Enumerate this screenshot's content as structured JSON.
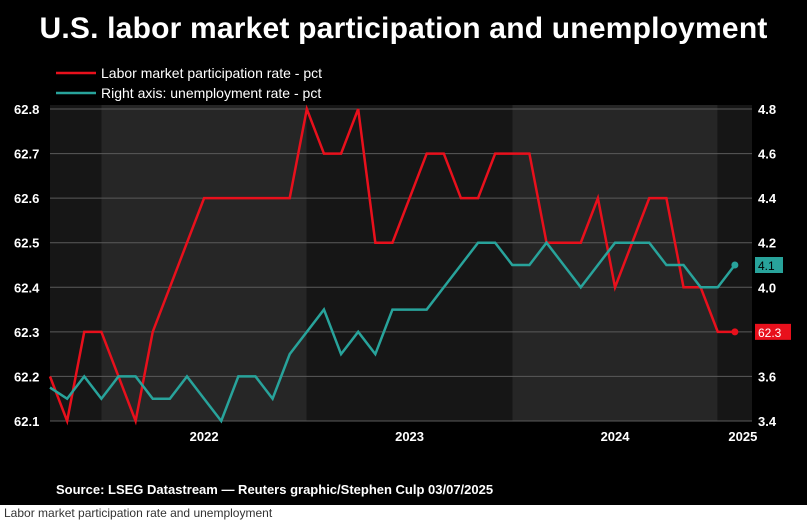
{
  "chart_data": {
    "type": "line",
    "title": "U.S. labor market participation and unemployment",
    "source": "Source: LSEG Datastream — Reuters graphic/Stephen Culp 03/07/2025",
    "caption": "Labor market participation rate and unemployment",
    "x_ticks": [
      "2022",
      "2023",
      "2024",
      "2025"
    ],
    "x_range": [
      "2021-10",
      "2025-03"
    ],
    "left_axis": {
      "ticks": [
        "62.1",
        "62.2",
        "62.3",
        "62.4",
        "62.5",
        "62.6",
        "62.7",
        "62.8"
      ],
      "ylim": [
        62.1,
        62.8
      ]
    },
    "right_axis": {
      "ticks": [
        "3.4",
        "3.6",
        "3.8",
        "4.0",
        "4.2",
        "4.4",
        "4.6",
        "4.8"
      ],
      "ylim": [
        3.4,
        4.8
      ]
    },
    "grid": true,
    "legend_position": "top-left",
    "series": [
      {
        "name": "Labor market participation rate - pct",
        "axis": "left",
        "color": "#e8101c",
        "end_label": "62.3",
        "dates": [
          "2021-10",
          "2021-11",
          "2021-12",
          "2022-01",
          "2022-02",
          "2022-03",
          "2022-04",
          "2022-05",
          "2022-06",
          "2022-07",
          "2022-08",
          "2022-09",
          "2022-10",
          "2022-11",
          "2022-12",
          "2023-01",
          "2023-02",
          "2023-03",
          "2023-04",
          "2023-05",
          "2023-06",
          "2023-07",
          "2023-08",
          "2023-09",
          "2023-10",
          "2023-11",
          "2023-12",
          "2024-01",
          "2024-02",
          "2024-03",
          "2024-04",
          "2024-05",
          "2024-06",
          "2024-07",
          "2024-08",
          "2024-09",
          "2024-10",
          "2024-11",
          "2024-12",
          "2025-01",
          "2025-02"
        ],
        "values": [
          62.2,
          62.1,
          62.3,
          62.3,
          62.2,
          62.1,
          62.3,
          62.4,
          62.5,
          62.6,
          62.6,
          62.6,
          62.6,
          62.6,
          62.6,
          62.8,
          62.7,
          62.7,
          62.8,
          62.5,
          62.5,
          62.6,
          62.7,
          62.7,
          62.6,
          62.6,
          62.7,
          62.7,
          62.7,
          62.5,
          62.5,
          62.5,
          62.6,
          62.4,
          62.5,
          62.6,
          62.6,
          62.4,
          62.4,
          62.3,
          62.3
        ]
      },
      {
        "name": "Right axis: unemployment rate - pct",
        "axis": "right",
        "color": "#28a39b",
        "end_label": "4.1",
        "dates": [
          "2021-10",
          "2021-11",
          "2021-12",
          "2022-01",
          "2022-02",
          "2022-03",
          "2022-04",
          "2022-05",
          "2022-06",
          "2022-07",
          "2022-08",
          "2022-09",
          "2022-10",
          "2022-11",
          "2022-12",
          "2023-01",
          "2023-02",
          "2023-03",
          "2023-04",
          "2023-05",
          "2023-06",
          "2023-07",
          "2023-08",
          "2023-09",
          "2023-10",
          "2023-11",
          "2023-12",
          "2024-01",
          "2024-02",
          "2024-03",
          "2024-04",
          "2024-05",
          "2024-06",
          "2024-07",
          "2024-08",
          "2024-09",
          "2024-10",
          "2024-11",
          "2024-12",
          "2025-01",
          "2025-02"
        ],
        "values": [
          3.55,
          3.5,
          3.6,
          3.5,
          3.6,
          3.6,
          3.5,
          3.5,
          3.6,
          3.5,
          3.4,
          3.6,
          3.6,
          3.5,
          3.7,
          3.8,
          3.9,
          3.7,
          3.8,
          3.7,
          3.9,
          3.9,
          3.9,
          4.0,
          4.1,
          4.2,
          4.2,
          4.1,
          4.1,
          4.2,
          4.1,
          4.0,
          4.1,
          4.2,
          4.2,
          4.2,
          4.1,
          4.1,
          4.0,
          4.0,
          4.1
        ]
      }
    ]
  },
  "colors": {
    "background": "#000000",
    "plot_band_light": "#262626",
    "plot_band_dark": "#161616",
    "grid": "#5a5a5a",
    "text": "#ffffff"
  }
}
